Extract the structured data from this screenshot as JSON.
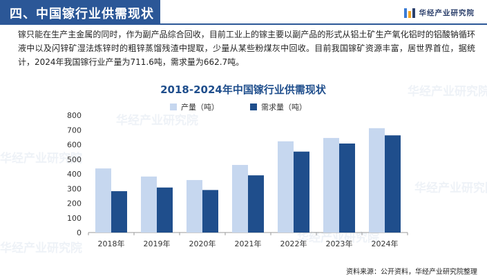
{
  "header": {
    "title": "四、中国镓行业供需现状",
    "brand": "华经产业研究院"
  },
  "description": "镓只能在生产主金属的同时，作为副产品综合回收，目前工业上的镓主要以副产品的形式从铝土矿生产氧化铝时的铝酸钠循环液中以及闪锌矿湿法炼锌时的粗锌蒸馏残渣中提取，少量从某些粉煤灰中回收。目前我国镓矿资源丰富，居世界首位，据统计，2024年我国镓行业产量为711.6吨，需求量为662.7吨。",
  "watermark": "华经产业研究院",
  "colors": {
    "header": "#2b5797",
    "production": "#c6d7ef",
    "demand": "#1f4e8c",
    "title": "#1f4e8c"
  },
  "chart_data": {
    "type": "bar",
    "title": "2018-2024年中国镓行业供需现状",
    "categories": [
      "2018年",
      "2019年",
      "2020年",
      "2021年",
      "2022年",
      "2023年",
      "2024年"
    ],
    "series": [
      {
        "name": "产量（吨）",
        "values": [
          437,
          382,
          358,
          461,
          622,
          645,
          711.6
        ]
      },
      {
        "name": "需求量（吨）",
        "values": [
          282,
          307,
          290,
          390,
          552,
          607,
          662.7
        ]
      }
    ],
    "ylim": [
      0,
      800
    ],
    "yticks": [
      "0",
      "100",
      "200",
      "300",
      "400",
      "500",
      "600",
      "700",
      "800"
    ],
    "grid": false,
    "legend": "top-right"
  },
  "source": "资料来源：公开资料，华经产业研究院整理"
}
